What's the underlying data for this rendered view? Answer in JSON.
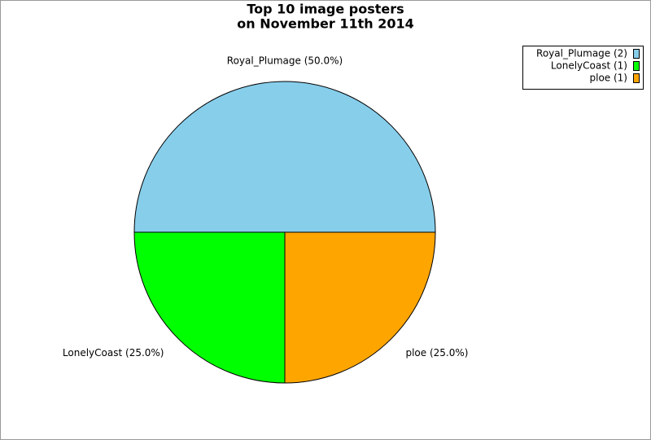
{
  "chart_data": {
    "type": "pie",
    "title": [
      "Top 10 image posters",
      "on November 11th 2014"
    ],
    "categories": [
      "Royal_Plumage (2)",
      "LonelyCoast (1)",
      "ploe (1)"
    ],
    "values": [
      2,
      1,
      1
    ],
    "slice_labels": [
      "Royal_Plumage (50.0%)",
      "LonelyCoast (25.0%)",
      "ploe (25.0%)"
    ],
    "colors": [
      "#87ceeb",
      "#00ff00",
      "#ffa500"
    ],
    "legend": "top-right"
  }
}
